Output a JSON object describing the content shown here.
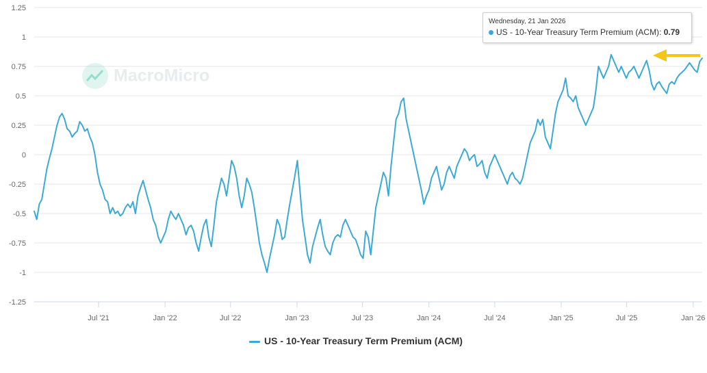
{
  "chart_data": {
    "type": "line",
    "title": "",
    "xlabel": "",
    "ylabel": "",
    "ylim": [
      -1.25,
      1.25
    ],
    "y_ticks": [
      1.25,
      1,
      0.75,
      0.5,
      0.25,
      0,
      -0.25,
      -0.5,
      -0.75,
      -1,
      -1.25
    ],
    "y_tick_labels": [
      "1.25",
      "1",
      "0.75",
      "0.5",
      "0.25",
      "0",
      "-0.25",
      "-0.5",
      "-0.75",
      "-1",
      "-1.25"
    ],
    "x_range": [
      "2021-01-04",
      "2026-01-26"
    ],
    "x_ticks": [
      {
        "label": "Jul '21",
        "date": "2021-07-01"
      },
      {
        "label": "Jan '22",
        "date": "2022-01-01"
      },
      {
        "label": "Jul '22",
        "date": "2022-07-01"
      },
      {
        "label": "Jan '23",
        "date": "2023-01-01"
      },
      {
        "label": "Jul '23",
        "date": "2023-07-01"
      },
      {
        "label": "Jan '24",
        "date": "2024-01-01"
      },
      {
        "label": "Jul '24",
        "date": "2024-07-01"
      },
      {
        "label": "Jan '25",
        "date": "2025-01-01"
      },
      {
        "label": "Jul '25",
        "date": "2025-07-01"
      },
      {
        "label": "Jan '26",
        "date": "2026-01-01"
      }
    ],
    "grid": "horizontal",
    "legend_position": "bottom-center",
    "series": [
      {
        "name": "US - 10-Year Treasury Term Premium (ACM)",
        "color": "#3ba9d6",
        "points": [
          [
            "2021-01-04",
            -0.48
          ],
          [
            "2021-01-11",
            -0.55
          ],
          [
            "2021-01-18",
            -0.42
          ],
          [
            "2021-01-25",
            -0.38
          ],
          [
            "2021-02-01",
            -0.25
          ],
          [
            "2021-02-08",
            -0.12
          ],
          [
            "2021-02-15",
            -0.03
          ],
          [
            "2021-02-22",
            0.05
          ],
          [
            "2021-03-01",
            0.15
          ],
          [
            "2021-03-08",
            0.25
          ],
          [
            "2021-03-15",
            0.32
          ],
          [
            "2021-03-22",
            0.35
          ],
          [
            "2021-03-29",
            0.3
          ],
          [
            "2021-04-05",
            0.22
          ],
          [
            "2021-04-12",
            0.2
          ],
          [
            "2021-04-19",
            0.15
          ],
          [
            "2021-04-26",
            0.18
          ],
          [
            "2021-05-03",
            0.2
          ],
          [
            "2021-05-10",
            0.28
          ],
          [
            "2021-05-17",
            0.25
          ],
          [
            "2021-05-24",
            0.2
          ],
          [
            "2021-05-31",
            0.22
          ],
          [
            "2021-06-07",
            0.15
          ],
          [
            "2021-06-14",
            0.1
          ],
          [
            "2021-06-21",
            0.0
          ],
          [
            "2021-06-28",
            -0.15
          ],
          [
            "2021-07-05",
            -0.25
          ],
          [
            "2021-07-12",
            -0.3
          ],
          [
            "2021-07-19",
            -0.38
          ],
          [
            "2021-07-26",
            -0.4
          ],
          [
            "2021-08-02",
            -0.5
          ],
          [
            "2021-08-09",
            -0.45
          ],
          [
            "2021-08-16",
            -0.5
          ],
          [
            "2021-08-23",
            -0.48
          ],
          [
            "2021-08-30",
            -0.52
          ],
          [
            "2021-09-06",
            -0.5
          ],
          [
            "2021-09-13",
            -0.45
          ],
          [
            "2021-09-20",
            -0.42
          ],
          [
            "2021-09-27",
            -0.45
          ],
          [
            "2021-10-04",
            -0.4
          ],
          [
            "2021-10-11",
            -0.5
          ],
          [
            "2021-10-18",
            -0.35
          ],
          [
            "2021-10-25",
            -0.28
          ],
          [
            "2021-11-01",
            -0.22
          ],
          [
            "2021-11-08",
            -0.3
          ],
          [
            "2021-11-15",
            -0.38
          ],
          [
            "2021-11-22",
            -0.45
          ],
          [
            "2021-11-29",
            -0.55
          ],
          [
            "2021-12-06",
            -0.6
          ],
          [
            "2021-12-13",
            -0.7
          ],
          [
            "2021-12-20",
            -0.75
          ],
          [
            "2021-12-27",
            -0.7
          ],
          [
            "2022-01-03",
            -0.65
          ],
          [
            "2022-01-10",
            -0.55
          ],
          [
            "2022-01-17",
            -0.48
          ],
          [
            "2022-01-24",
            -0.52
          ],
          [
            "2022-01-31",
            -0.55
          ],
          [
            "2022-02-07",
            -0.5
          ],
          [
            "2022-02-14",
            -0.55
          ],
          [
            "2022-02-21",
            -0.6
          ],
          [
            "2022-02-28",
            -0.68
          ],
          [
            "2022-03-07",
            -0.62
          ],
          [
            "2022-03-14",
            -0.6
          ],
          [
            "2022-03-21",
            -0.65
          ],
          [
            "2022-03-28",
            -0.75
          ],
          [
            "2022-04-04",
            -0.82
          ],
          [
            "2022-04-11",
            -0.7
          ],
          [
            "2022-04-18",
            -0.6
          ],
          [
            "2022-04-25",
            -0.55
          ],
          [
            "2022-05-02",
            -0.7
          ],
          [
            "2022-05-09",
            -0.78
          ],
          [
            "2022-05-16",
            -0.6
          ],
          [
            "2022-05-23",
            -0.4
          ],
          [
            "2022-05-30",
            -0.3
          ],
          [
            "2022-06-06",
            -0.2
          ],
          [
            "2022-06-13",
            -0.25
          ],
          [
            "2022-06-20",
            -0.35
          ],
          [
            "2022-06-27",
            -0.2
          ],
          [
            "2022-07-04",
            -0.05
          ],
          [
            "2022-07-11",
            -0.1
          ],
          [
            "2022-07-18",
            -0.2
          ],
          [
            "2022-07-25",
            -0.35
          ],
          [
            "2022-08-01",
            -0.45
          ],
          [
            "2022-08-08",
            -0.35
          ],
          [
            "2022-08-15",
            -0.2
          ],
          [
            "2022-08-22",
            -0.25
          ],
          [
            "2022-08-29",
            -0.32
          ],
          [
            "2022-09-05",
            -0.45
          ],
          [
            "2022-09-12",
            -0.6
          ],
          [
            "2022-09-19",
            -0.75
          ],
          [
            "2022-09-26",
            -0.85
          ],
          [
            "2022-10-03",
            -0.92
          ],
          [
            "2022-10-10",
            -1.0
          ],
          [
            "2022-10-17",
            -0.88
          ],
          [
            "2022-10-24",
            -0.78
          ],
          [
            "2022-10-31",
            -0.68
          ],
          [
            "2022-11-07",
            -0.55
          ],
          [
            "2022-11-14",
            -0.6
          ],
          [
            "2022-11-21",
            -0.72
          ],
          [
            "2022-11-28",
            -0.7
          ],
          [
            "2022-12-05",
            -0.55
          ],
          [
            "2022-12-12",
            -0.42
          ],
          [
            "2022-12-19",
            -0.3
          ],
          [
            "2022-12-26",
            -0.18
          ],
          [
            "2023-01-02",
            -0.05
          ],
          [
            "2023-01-09",
            -0.3
          ],
          [
            "2023-01-16",
            -0.55
          ],
          [
            "2023-01-23",
            -0.7
          ],
          [
            "2023-01-30",
            -0.85
          ],
          [
            "2023-02-06",
            -0.92
          ],
          [
            "2023-02-13",
            -0.78
          ],
          [
            "2023-02-20",
            -0.7
          ],
          [
            "2023-02-27",
            -0.62
          ],
          [
            "2023-03-06",
            -0.55
          ],
          [
            "2023-03-13",
            -0.68
          ],
          [
            "2023-03-20",
            -0.78
          ],
          [
            "2023-03-27",
            -0.82
          ],
          [
            "2023-04-03",
            -0.85
          ],
          [
            "2023-04-10",
            -0.75
          ],
          [
            "2023-04-17",
            -0.7
          ],
          [
            "2023-04-24",
            -0.68
          ],
          [
            "2023-05-01",
            -0.7
          ],
          [
            "2023-05-08",
            -0.6
          ],
          [
            "2023-05-15",
            -0.55
          ],
          [
            "2023-05-22",
            -0.6
          ],
          [
            "2023-05-29",
            -0.65
          ],
          [
            "2023-06-05",
            -0.7
          ],
          [
            "2023-06-12",
            -0.72
          ],
          [
            "2023-06-19",
            -0.78
          ],
          [
            "2023-06-26",
            -0.85
          ],
          [
            "2023-07-03",
            -0.88
          ],
          [
            "2023-07-10",
            -0.65
          ],
          [
            "2023-07-17",
            -0.7
          ],
          [
            "2023-07-24",
            -0.85
          ],
          [
            "2023-07-31",
            -0.65
          ],
          [
            "2023-08-07",
            -0.45
          ],
          [
            "2023-08-14",
            -0.35
          ],
          [
            "2023-08-21",
            -0.25
          ],
          [
            "2023-08-28",
            -0.15
          ],
          [
            "2023-09-04",
            -0.2
          ],
          [
            "2023-09-11",
            -0.35
          ],
          [
            "2023-09-18",
            -0.1
          ],
          [
            "2023-09-25",
            0.1
          ],
          [
            "2023-10-02",
            0.3
          ],
          [
            "2023-10-09",
            0.35
          ],
          [
            "2023-10-16",
            0.45
          ],
          [
            "2023-10-23",
            0.48
          ],
          [
            "2023-10-30",
            0.3
          ],
          [
            "2023-11-06",
            0.2
          ],
          [
            "2023-11-13",
            0.1
          ],
          [
            "2023-11-20",
            0.0
          ],
          [
            "2023-11-27",
            -0.1
          ],
          [
            "2023-12-04",
            -0.2
          ],
          [
            "2023-12-11",
            -0.3
          ],
          [
            "2023-12-18",
            -0.42
          ],
          [
            "2023-12-25",
            -0.35
          ],
          [
            "2024-01-01",
            -0.3
          ],
          [
            "2024-01-08",
            -0.2
          ],
          [
            "2024-01-15",
            -0.15
          ],
          [
            "2024-01-22",
            -0.1
          ],
          [
            "2024-01-29",
            -0.2
          ],
          [
            "2024-02-05",
            -0.3
          ],
          [
            "2024-02-12",
            -0.25
          ],
          [
            "2024-02-19",
            -0.15
          ],
          [
            "2024-02-26",
            -0.1
          ],
          [
            "2024-03-04",
            -0.15
          ],
          [
            "2024-03-11",
            -0.2
          ],
          [
            "2024-03-18",
            -0.1
          ],
          [
            "2024-03-25",
            -0.05
          ],
          [
            "2024-04-01",
            0.0
          ],
          [
            "2024-04-08",
            0.05
          ],
          [
            "2024-04-15",
            0.02
          ],
          [
            "2024-04-22",
            -0.05
          ],
          [
            "2024-04-29",
            -0.02
          ],
          [
            "2024-05-06",
            0.0
          ],
          [
            "2024-05-13",
            -0.1
          ],
          [
            "2024-05-20",
            -0.08
          ],
          [
            "2024-05-27",
            -0.05
          ],
          [
            "2024-06-03",
            -0.15
          ],
          [
            "2024-06-10",
            -0.2
          ],
          [
            "2024-06-17",
            -0.1
          ],
          [
            "2024-06-24",
            -0.05
          ],
          [
            "2024-07-01",
            0.0
          ],
          [
            "2024-07-08",
            -0.05
          ],
          [
            "2024-07-15",
            -0.1
          ],
          [
            "2024-07-22",
            -0.15
          ],
          [
            "2024-07-29",
            -0.2
          ],
          [
            "2024-08-05",
            -0.25
          ],
          [
            "2024-08-12",
            -0.18
          ],
          [
            "2024-08-19",
            -0.15
          ],
          [
            "2024-08-26",
            -0.2
          ],
          [
            "2024-09-02",
            -0.22
          ],
          [
            "2024-09-09",
            -0.25
          ],
          [
            "2024-09-16",
            -0.2
          ],
          [
            "2024-09-23",
            -0.1
          ],
          [
            "2024-09-30",
            0.0
          ],
          [
            "2024-10-07",
            0.1
          ],
          [
            "2024-10-14",
            0.15
          ],
          [
            "2024-10-21",
            0.2
          ],
          [
            "2024-10-28",
            0.3
          ],
          [
            "2024-11-04",
            0.25
          ],
          [
            "2024-11-11",
            0.3
          ],
          [
            "2024-11-18",
            0.15
          ],
          [
            "2024-11-25",
            0.1
          ],
          [
            "2024-12-02",
            0.05
          ],
          [
            "2024-12-09",
            0.2
          ],
          [
            "2024-12-16",
            0.35
          ],
          [
            "2024-12-23",
            0.45
          ],
          [
            "2024-12-30",
            0.5
          ],
          [
            "2025-01-06",
            0.55
          ],
          [
            "2025-01-13",
            0.65
          ],
          [
            "2025-01-20",
            0.5
          ],
          [
            "2025-01-27",
            0.48
          ],
          [
            "2025-02-03",
            0.45
          ],
          [
            "2025-02-10",
            0.5
          ],
          [
            "2025-02-17",
            0.4
          ],
          [
            "2025-02-24",
            0.35
          ],
          [
            "2025-03-03",
            0.3
          ],
          [
            "2025-03-10",
            0.25
          ],
          [
            "2025-03-17",
            0.3
          ],
          [
            "2025-03-24",
            0.35
          ],
          [
            "2025-03-31",
            0.4
          ],
          [
            "2025-04-07",
            0.55
          ],
          [
            "2025-04-14",
            0.75
          ],
          [
            "2025-04-21",
            0.7
          ],
          [
            "2025-04-28",
            0.65
          ],
          [
            "2025-05-05",
            0.7
          ],
          [
            "2025-05-12",
            0.75
          ],
          [
            "2025-05-19",
            0.85
          ],
          [
            "2025-05-26",
            0.8
          ],
          [
            "2025-06-02",
            0.75
          ],
          [
            "2025-06-09",
            0.7
          ],
          [
            "2025-06-16",
            0.75
          ],
          [
            "2025-06-23",
            0.7
          ],
          [
            "2025-06-30",
            0.65
          ],
          [
            "2025-07-07",
            0.7
          ],
          [
            "2025-07-14",
            0.72
          ],
          [
            "2025-07-21",
            0.75
          ],
          [
            "2025-07-28",
            0.7
          ],
          [
            "2025-08-04",
            0.65
          ],
          [
            "2025-08-11",
            0.7
          ],
          [
            "2025-08-18",
            0.75
          ],
          [
            "2025-08-25",
            0.8
          ],
          [
            "2025-09-01",
            0.72
          ],
          [
            "2025-09-08",
            0.6
          ],
          [
            "2025-09-15",
            0.55
          ],
          [
            "2025-09-22",
            0.6
          ],
          [
            "2025-09-29",
            0.62
          ],
          [
            "2025-10-06",
            0.58
          ],
          [
            "2025-10-13",
            0.55
          ],
          [
            "2025-10-20",
            0.52
          ],
          [
            "2025-10-27",
            0.6
          ],
          [
            "2025-11-03",
            0.62
          ],
          [
            "2025-11-10",
            0.6
          ],
          [
            "2025-11-17",
            0.65
          ],
          [
            "2025-11-24",
            0.68
          ],
          [
            "2025-12-01",
            0.7
          ],
          [
            "2025-12-08",
            0.72
          ],
          [
            "2025-12-15",
            0.75
          ],
          [
            "2025-12-22",
            0.78
          ],
          [
            "2025-12-29",
            0.75
          ],
          [
            "2026-01-05",
            0.72
          ],
          [
            "2026-01-12",
            0.7
          ],
          [
            "2026-01-19",
            0.79
          ],
          [
            "2026-01-26",
            0.82
          ]
        ]
      }
    ],
    "annotation_arrow_color": "#f5c518"
  },
  "tooltip": {
    "date": "Wednesday, 21 Jan 2026",
    "series_label": "US - 10-Year Treasury Term Premium (ACM)",
    "separator": ": ",
    "value": "0.79"
  },
  "legend": {
    "label": "US - 10-Year Treasury Term Premium (ACM)"
  },
  "watermark": {
    "text": "MacroMicro"
  }
}
